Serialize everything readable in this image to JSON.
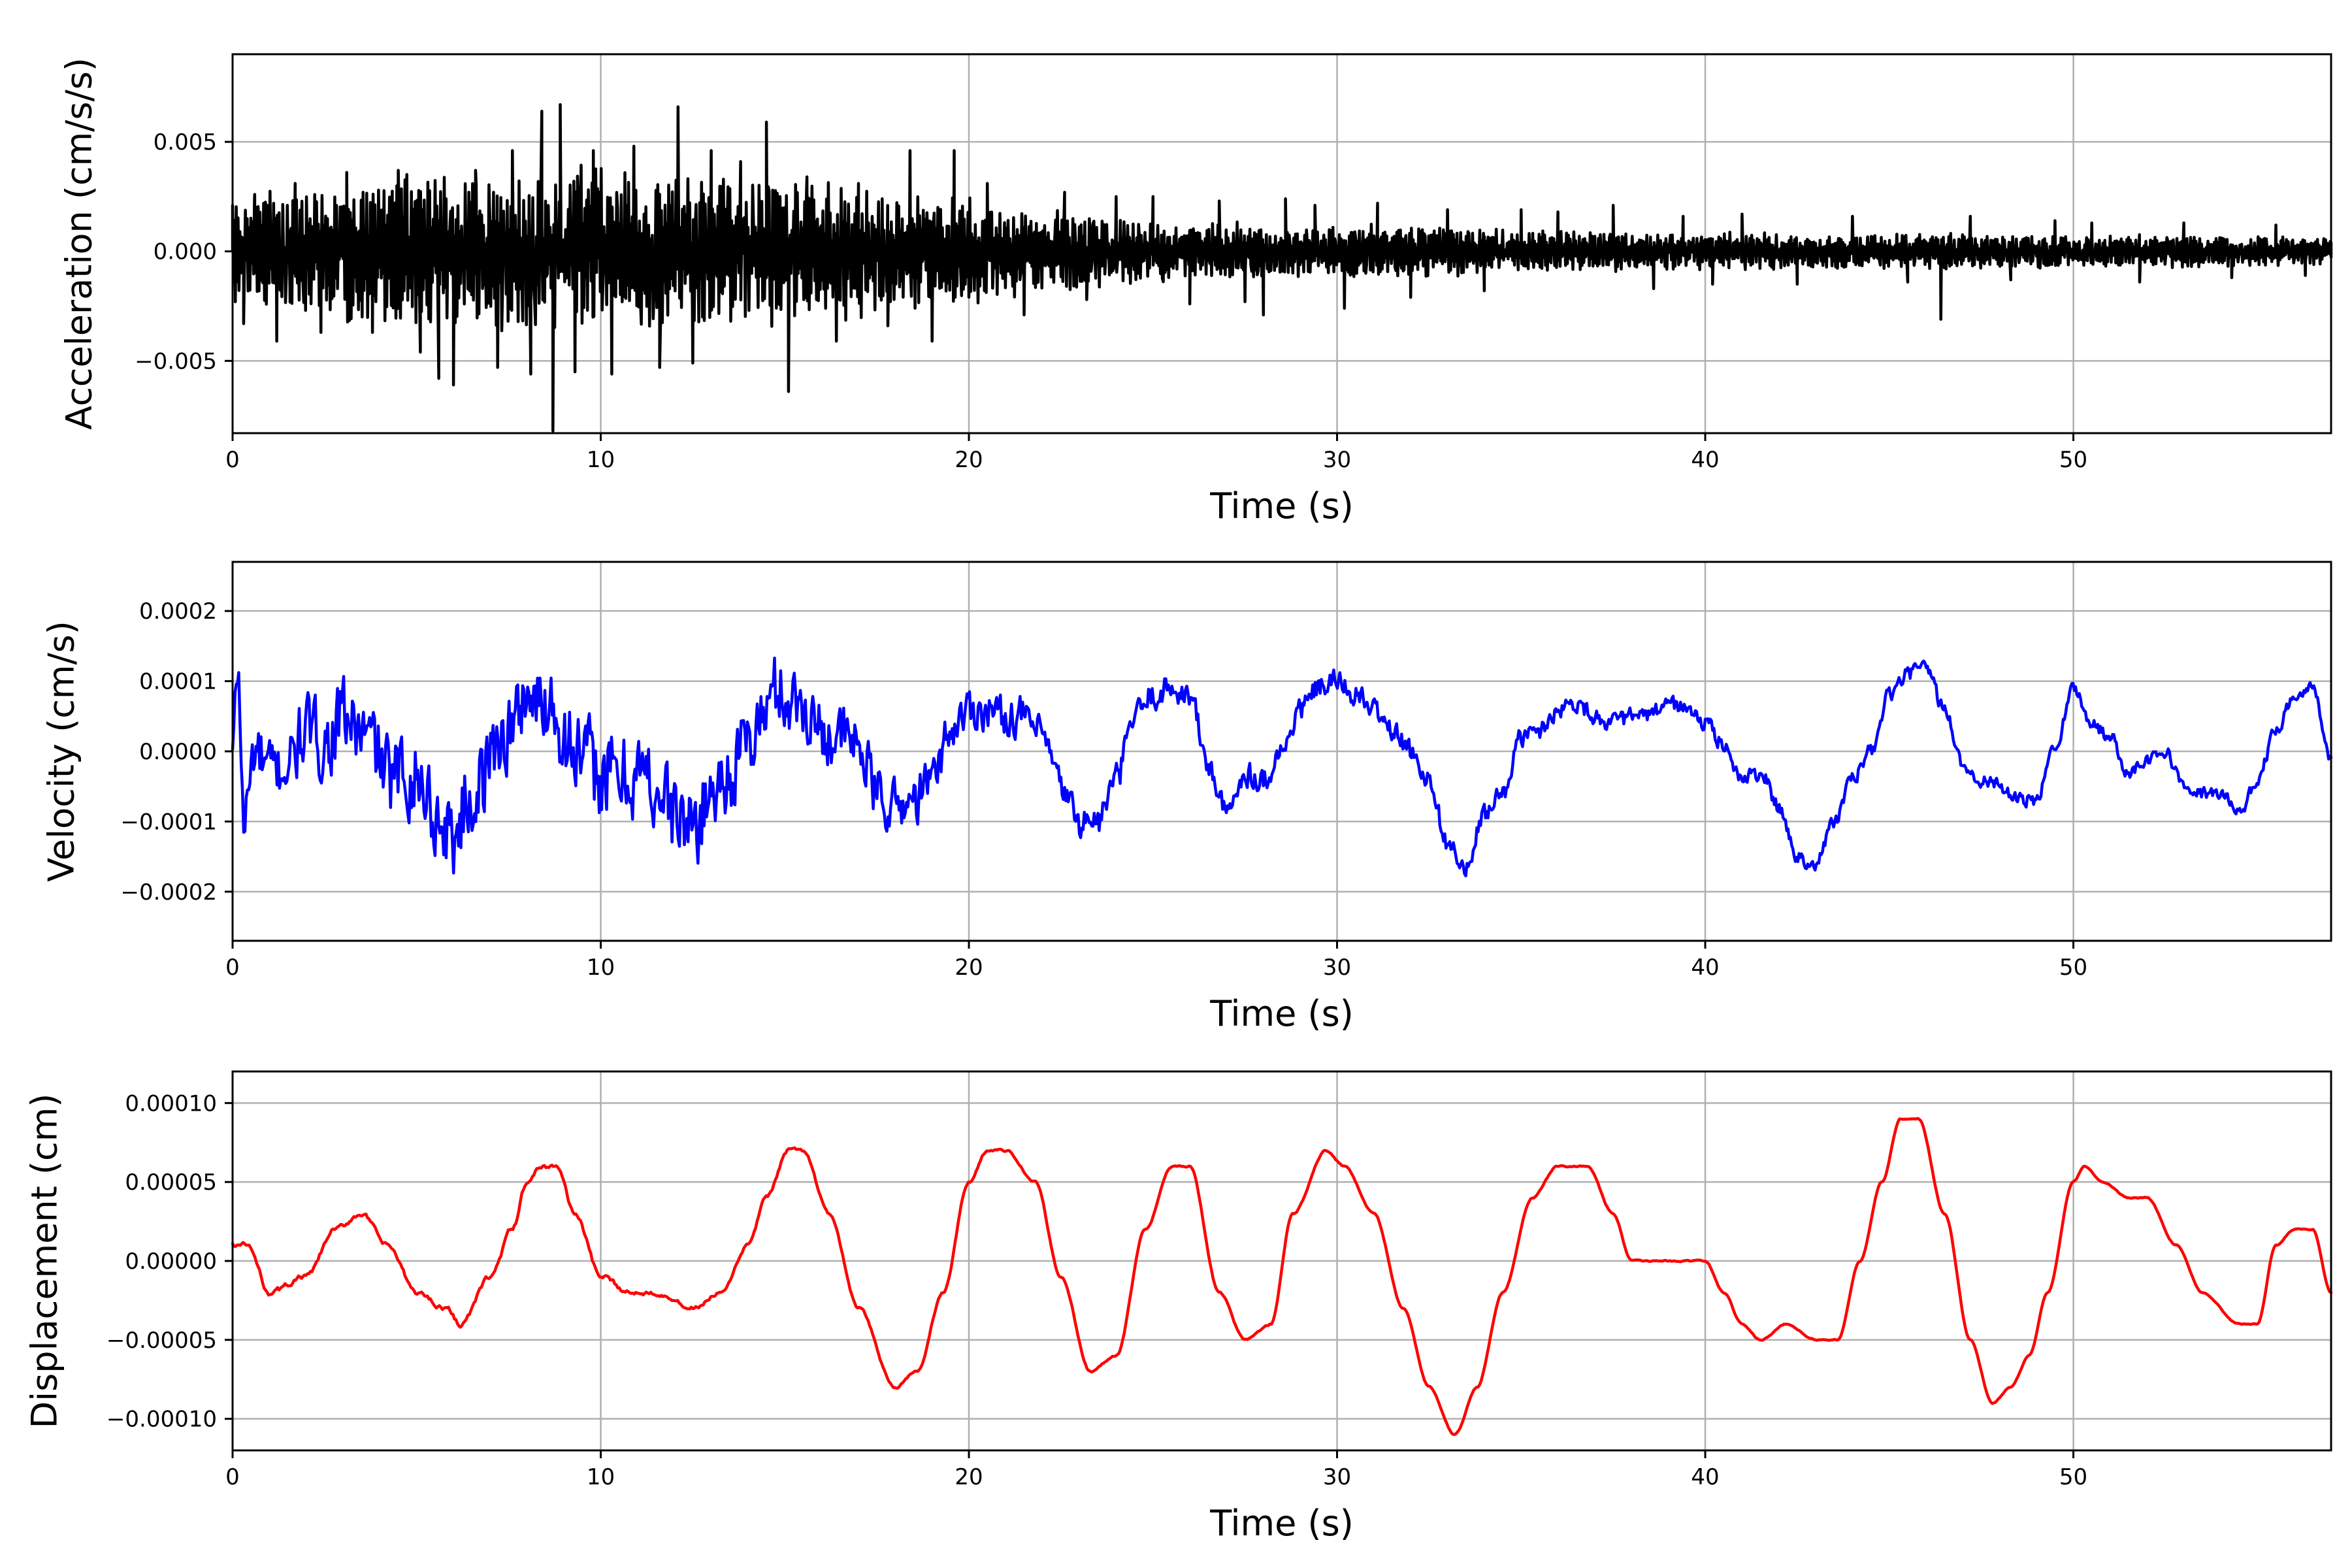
{
  "chart_data": [
    {
      "type": "line",
      "color": "#000000",
      "xlabel": "Time (s)",
      "ylabel": "Acceleration (cm/s/s)",
      "xlim": [
        0,
        57
      ],
      "ylim": [
        -0.0083,
        0.009
      ],
      "xticks": [
        0,
        10,
        20,
        30,
        40,
        50
      ],
      "xtick_labels": [
        "0",
        "10",
        "20",
        "30",
        "40",
        "50"
      ],
      "yticks": [
        -0.005,
        0.0,
        0.005
      ],
      "ytick_labels": [
        "−0.005",
        "0.000",
        "0.005"
      ],
      "grid": true,
      "series": [
        {
          "keypoints": {
            "x": [
              0,
              0.3,
              0.6,
              1.2,
              1.7,
              2.4,
              3.1,
              3.8,
              4.5,
              5.1,
              5.6,
              6.0,
              6.6,
              7.2,
              7.6,
              8.1,
              8.4,
              8.7,
              8.9,
              9.3,
              9.8,
              10.3,
              10.9,
              11.6,
              12.1,
              12.5,
              13.0,
              13.8,
              14.5,
              15.1,
              15.6,
              16.4,
              17.0,
              17.8,
              18.4,
              19.0,
              19.6,
              20.5,
              21.5,
              22.6,
              23.2,
              24.0,
              25.0,
              26.0,
              26.8,
              27.5,
              28.0,
              28.6,
              29.4,
              30.2,
              31.1,
              32.0,
              33.0,
              34.0,
              35.0,
              36.0,
              37.5,
              38.6,
              39.4,
              40.2,
              41.0,
              42.5,
              44.0,
              45.5,
              46.4,
              47.2,
              48.3,
              49.5,
              50.5,
              51.8,
              53.0,
              54.3,
              55.5,
              56.3,
              57.0
            ],
            "y": [
              0.0021,
              -0.0033,
              0.0026,
              -0.0041,
              0.0031,
              -0.0037,
              0.0036,
              -0.0037,
              0.0037,
              -0.0046,
              -0.0058,
              -0.0061,
              0.0037,
              -0.0053,
              0.0046,
              -0.0056,
              0.0064,
              -0.0082,
              0.0067,
              -0.0055,
              0.0046,
              -0.0056,
              0.0048,
              -0.0053,
              0.0066,
              -0.0051,
              0.0046,
              0.0041,
              0.0059,
              -0.0064,
              0.0034,
              -0.0041,
              0.0031,
              -0.0034,
              0.0046,
              -0.0041,
              0.0046,
              0.0031,
              -0.0029,
              0.0027,
              -0.0022,
              0.0025,
              0.0025,
              -0.0024,
              0.0023,
              -0.0023,
              -0.0029,
              0.0024,
              0.0021,
              -0.0026,
              0.0022,
              -0.0021,
              0.0019,
              -0.0018,
              0.0019,
              0.0018,
              0.0021,
              -0.0017,
              0.0016,
              -0.0015,
              0.0017,
              -0.0015,
              0.0016,
              -0.0014,
              -0.0031,
              0.0016,
              -0.0013,
              0.0014,
              0.0013,
              -0.0014,
              0.0013,
              -0.0012,
              0.0012,
              -0.0011,
              0.0004
            ]
          },
          "envelope": {
            "x": [
              0,
              5,
              10,
              15,
              20,
              25,
              30,
              35,
              40,
              45,
              50,
              55,
              57
            ],
            "amp": [
              0.0024,
              0.0032,
              0.0035,
              0.0031,
              0.0022,
              0.0013,
              0.00115,
              0.0009,
              0.0008,
              0.00075,
              0.0007,
              0.00065,
              0.0006
            ]
          }
        }
      ]
    },
    {
      "type": "line",
      "color": "#0000ff",
      "xlabel": "Time (s)",
      "ylabel": "Velocity (cm/s)",
      "xlim": [
        0,
        57
      ],
      "ylim": [
        -0.00027,
        0.00027
      ],
      "xticks": [
        0,
        10,
        20,
        30,
        40,
        50
      ],
      "xtick_labels": [
        "0",
        "10",
        "20",
        "30",
        "40",
        "50"
      ],
      "yticks": [
        -0.0002,
        -0.0001,
        0.0,
        0.0001,
        0.0002
      ],
      "ytick_labels": [
        "−0.0002",
        "−0.0001",
        "0.0000",
        "0.0001",
        "0.0002"
      ],
      "grid": true,
      "series": [
        {
          "keypoints": {
            "x": [
              0,
              0.15,
              0.3,
              0.6,
              1.0,
              1.5,
              2.0,
              2.5,
              3.0,
              3.4,
              3.8,
              4.3,
              4.8,
              5.2,
              5.6,
              6.0,
              6.4,
              6.8,
              7.2,
              7.6,
              8.0,
              8.3,
              8.6,
              8.9,
              9.2,
              9.6,
              10.0,
              10.5,
              11.0,
              11.5,
              12.0,
              12.5,
              13.0,
              13.5,
              14.0,
              14.4,
              14.8,
              15.2,
              15.6,
              16.0,
              16.5,
              17.0,
              17.5,
              18.0,
              18.5,
              19.0,
              19.5,
              20.0,
              20.5,
              21.0,
              21.5,
              22.0,
              22.5,
              23.0,
              23.5,
              24.0,
              24.5,
              25.0,
              25.5,
              26.0,
              26.5,
              27.0,
              27.5,
              28.0,
              28.5,
              29.0,
              29.5,
              30.0,
              30.5,
              31.0,
              31.5,
              32.0,
              32.5,
              33.0,
              33.5,
              34.0,
              34.5,
              35.0,
              35.5,
              36.0,
              36.5,
              37.0,
              37.5,
              38.0,
              38.5,
              39.0,
              39.5,
              40.0,
              40.5,
              41.0,
              41.5,
              42.0,
              42.5,
              43.0,
              43.5,
              44.0,
              44.5,
              45.0,
              45.5,
              46.0,
              46.5,
              47.0,
              47.5,
              48.0,
              48.5,
              49.0,
              49.5,
              50.0,
              50.5,
              51.0,
              51.5,
              52.0,
              52.5,
              53.0,
              53.5,
              54.0,
              54.5,
              55.0,
              55.5,
              56.0,
              56.5,
              57.0
            ],
            "y": [
              0.0,
              0.00012,
              -0.0001,
              0.0,
              -3e-05,
              -2e-05,
              3e-05,
              1e-05,
              5e-05,
              3e-05,
              1e-05,
              -4e-05,
              -3e-05,
              -5e-05,
              -0.0001,
              -0.00012,
              -7e-05,
              -4e-05,
              2e-05,
              3e-05,
              9e-05,
              6e-05,
              8e-05,
              4e-05,
              1e-05,
              -2e-05,
              -3e-05,
              -4e-05,
              -3e-05,
              -5e-05,
              -9e-05,
              -0.00011,
              -6e-05,
              -3e-05,
              1e-05,
              5e-05,
              9e-05,
              7e-05,
              6e-05,
              3e-05,
              2e-05,
              1e-05,
              -6e-05,
              -8e-05,
              -7e-05,
              -4e-05,
              3e-05,
              6e-05,
              6e-05,
              5e-05,
              5e-05,
              2e-05,
              -5e-05,
              -0.0001,
              -0.0001,
              -4e-05,
              5e-05,
              8e-05,
              9e-05,
              8e-05,
              -2e-05,
              -9e-05,
              -3e-05,
              -4e-05,
              0.0,
              6e-05,
              9e-05,
              0.0001,
              8e-05,
              6e-05,
              3e-05,
              0.0,
              -4e-05,
              -0.00013,
              -0.00017,
              -9e-05,
              -6e-05,
              2e-05,
              3e-05,
              6e-05,
              7e-05,
              5e-05,
              4e-05,
              5e-05,
              5e-05,
              7e-05,
              6e-05,
              4e-05,
              1e-05,
              -4e-05,
              -3e-05,
              -8e-05,
              -0.00015,
              -0.00016,
              -0.0001,
              -4e-05,
              0.0,
              8e-05,
              0.00011,
              0.00012,
              6e-05,
              -2e-05,
              -4e-05,
              -5e-05,
              -7e-05,
              -7e-05,
              1e-05,
              9e-05,
              4e-05,
              2e-05,
              -3e-05,
              -1e-05,
              0.0,
              -5e-05,
              -6e-05,
              -6e-05,
              -9e-05,
              -4e-05,
              3e-05,
              8e-05,
              9e-05,
              -1e-05
            ]
          },
          "noise": {
            "x": [
              0,
              5,
              10,
              15,
              20,
              25,
              30,
              35,
              40,
              45,
              50,
              55,
              57
            ],
            "amp": [
              6e-05,
              8e-05,
              9e-05,
              7e-05,
              4e-05,
              2.8e-05,
              2.2e-05,
              1.8e-05,
              1.6e-05,
              1.4e-05,
              1.3e-05,
              1.2e-05,
              1.1e-05
            ]
          }
        }
      ]
    },
    {
      "type": "line",
      "color": "#ff0000",
      "xlabel": "Time (s)",
      "ylabel": "Displacement (cm)",
      "xlim": [
        0,
        57
      ],
      "ylim": [
        -0.00012,
        0.00012
      ],
      "xticks": [
        0,
        10,
        20,
        30,
        40,
        50
      ],
      "xtick_labels": [
        "0",
        "10",
        "20",
        "30",
        "40",
        "50"
      ],
      "yticks": [
        -0.0001,
        -5e-05,
        0.0,
        5e-05,
        0.0001
      ],
      "ytick_labels": [
        "−0.00010",
        "−0.00005",
        "0.00000",
        "0.00005",
        "0.00010"
      ],
      "grid": true,
      "series": [
        {
          "keypoints": {
            "x": [
              0,
              0.4,
              1.0,
              2.0,
              2.8,
              3.5,
              4.2,
              5.0,
              5.8,
              6.2,
              7.0,
              7.6,
              8.0,
              8.4,
              8.8,
              9.3,
              10.0,
              10.8,
              11.5,
              12.5,
              13.3,
              14.0,
              14.5,
              15.1,
              15.5,
              16.2,
              17.0,
              18.0,
              18.6,
              19.3,
              20.0,
              20.5,
              21.0,
              21.8,
              22.5,
              23.3,
              24.0,
              24.8,
              25.5,
              26.0,
              26.8,
              27.5,
              28.2,
              28.8,
              29.7,
              30.2,
              31.0,
              31.8,
              32.5,
              33.2,
              33.8,
              34.5,
              35.3,
              36.0,
              36.8,
              37.5,
              38.0,
              38.5,
              39.2,
              40.0,
              40.5,
              41.0,
              41.5,
              42.2,
              43.0,
              43.6,
              44.2,
              44.8,
              45.3,
              45.8,
              46.5,
              47.2,
              47.8,
              48.3,
              48.8,
              49.3,
              50.0,
              50.3,
              50.8,
              51.5,
              52.0,
              52.8,
              53.5,
              54.5,
              55.0,
              55.5,
              56.0,
              56.5,
              57.0
            ],
            "y": [
              1e-05,
              1e-05,
              -2e-05,
              -1e-05,
              2e-05,
              3e-05,
              1e-05,
              -2e-05,
              -3e-05,
              -4e-05,
              -1e-05,
              2e-05,
              5e-05,
              6e-05,
              6e-05,
              3e-05,
              -1e-05,
              -2e-05,
              -2e-05,
              -3e-05,
              -2e-05,
              1e-05,
              4e-05,
              7e-05,
              7e-05,
              3e-05,
              -3e-05,
              -8e-05,
              -7e-05,
              -2e-05,
              5e-05,
              7e-05,
              7e-05,
              5e-05,
              -1e-05,
              -7e-05,
              -6e-05,
              2e-05,
              6e-05,
              6e-05,
              -2e-05,
              -5e-05,
              -4e-05,
              3e-05,
              7e-05,
              6e-05,
              3e-05,
              -3e-05,
              -8e-05,
              -0.00011,
              -8e-05,
              -2e-05,
              4e-05,
              6e-05,
              6e-05,
              3e-05,
              0.0,
              0.0,
              0.0,
              0.0,
              -2e-05,
              -4e-05,
              -5e-05,
              -4e-05,
              -5e-05,
              -5e-05,
              0.0,
              5e-05,
              9e-05,
              9e-05,
              3e-05,
              -5e-05,
              -9e-05,
              -8e-05,
              -6e-05,
              -2e-05,
              5e-05,
              6e-05,
              5e-05,
              4e-05,
              4e-05,
              1e-05,
              -2e-05,
              -4e-05,
              -4e-05,
              1e-05,
              2e-05,
              2e-05,
              -2e-05
            ]
          },
          "noise": {
            "x": [
              0,
              10,
              20,
              30,
              40,
              57
            ],
            "amp": [
              3.5e-06,
              3e-06,
              1.5e-06,
              1e-06,
              8e-07,
              6e-07
            ]
          }
        }
      ]
    }
  ]
}
